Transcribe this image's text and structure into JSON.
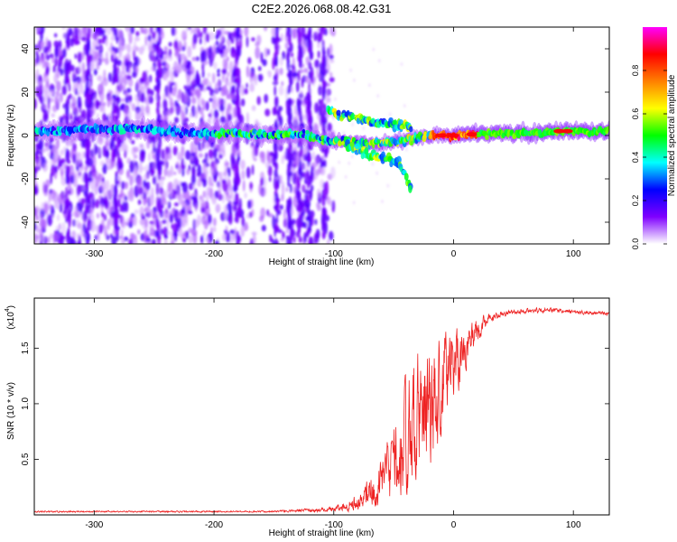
{
  "title": "C2E2.2026.068.08.42.G31",
  "chart_data": [
    {
      "type": "heatmap",
      "xlabel": "Height of straight line (km)",
      "ylabel": "Frequency (Hz)",
      "xlim": [
        -350,
        130
      ],
      "ylim": [
        -50,
        50
      ],
      "xticks": [
        -300,
        -200,
        -100,
        0,
        100
      ],
      "yticks": [
        -40,
        -20,
        0,
        20,
        40
      ],
      "colorbar": {
        "label": "Normalized spectral amplitude",
        "range": [
          0,
          1
        ],
        "ticks": [
          "0.0",
          "0.2",
          "0.4",
          "0.6",
          "0.8"
        ],
        "tick_values": [
          0,
          0.2,
          0.4,
          0.6,
          0.8
        ],
        "colormap": [
          "#ffffff",
          "#7f00ff",
          "#0000ff",
          "#00ffff",
          "#00ff00",
          "#ffff00",
          "#ff8000",
          "#ff0000",
          "#ff00ff"
        ]
      },
      "ridge": [
        {
          "x": -340,
          "y": 2
        },
        {
          "x": -300,
          "y": 3
        },
        {
          "x": -260,
          "y": 3
        },
        {
          "x": -220,
          "y": 1
        },
        {
          "x": -180,
          "y": 1
        },
        {
          "x": -150,
          "y": 0
        },
        {
          "x": -130,
          "y": 1
        },
        {
          "x": -110,
          "y": -2
        },
        {
          "x": -90,
          "y": -3
        },
        {
          "x": -70,
          "y": -4
        },
        {
          "x": -50,
          "y": -3
        },
        {
          "x": -40,
          "y": -2
        },
        {
          "x": -20,
          "y": 0
        },
        {
          "x": 0,
          "y": 0
        },
        {
          "x": 20,
          "y": 1
        },
        {
          "x": 50,
          "y": 1
        },
        {
          "x": 90,
          "y": 2
        },
        {
          "x": 130,
          "y": 2
        }
      ],
      "upper_branch": [
        {
          "x": -105,
          "y": 12
        },
        {
          "x": -95,
          "y": 9
        },
        {
          "x": -80,
          "y": 8
        },
        {
          "x": -65,
          "y": 6
        },
        {
          "x": -50,
          "y": 5
        },
        {
          "x": -35,
          "y": 4
        }
      ],
      "lower_branch": [
        {
          "x": -90,
          "y": -4
        },
        {
          "x": -70,
          "y": -9
        },
        {
          "x": -55,
          "y": -11
        },
        {
          "x": -45,
          "y": -13
        },
        {
          "x": -35,
          "y": -24
        }
      ]
    },
    {
      "type": "line",
      "xlabel": "Height of straight line (km)",
      "ylabel": "SNR (10 * v/v)",
      "scale_label": "(x10",
      "scale_exp": "4",
      "xlim": [
        -350,
        130
      ],
      "ylim": [
        0,
        1.95
      ],
      "xticks": [
        -300,
        -200,
        -100,
        0,
        100
      ],
      "yticks": [
        0.5,
        1.0,
        1.5
      ],
      "ytick_labels": [
        "0.5",
        "1.0",
        "1.5"
      ],
      "color": "#ee2222",
      "envelope": [
        {
          "x": -350,
          "mean": 0.03,
          "amp": 0.01
        },
        {
          "x": -150,
          "mean": 0.03,
          "amp": 0.01
        },
        {
          "x": -100,
          "mean": 0.05,
          "amp": 0.03
        },
        {
          "x": -80,
          "mean": 0.12,
          "amp": 0.1
        },
        {
          "x": -60,
          "mean": 0.3,
          "amp": 0.3
        },
        {
          "x": -45,
          "mean": 0.55,
          "amp": 0.55
        },
        {
          "x": -35,
          "mean": 0.8,
          "amp": 0.75
        },
        {
          "x": -28,
          "mean": 0.9,
          "amp": 0.8
        },
        {
          "x": -20,
          "mean": 0.9,
          "amp": 0.7
        },
        {
          "x": -10,
          "mean": 1.15,
          "amp": 0.6
        },
        {
          "x": 0,
          "mean": 1.4,
          "amp": 0.5
        },
        {
          "x": 10,
          "mean": 1.5,
          "amp": 0.3
        },
        {
          "x": 20,
          "mean": 1.65,
          "amp": 0.15
        },
        {
          "x": 30,
          "mean": 1.78,
          "amp": 0.05
        },
        {
          "x": 50,
          "mean": 1.83,
          "amp": 0.03
        },
        {
          "x": 80,
          "mean": 1.84,
          "amp": 0.03
        },
        {
          "x": 130,
          "mean": 1.81,
          "amp": 0.02
        }
      ]
    }
  ]
}
